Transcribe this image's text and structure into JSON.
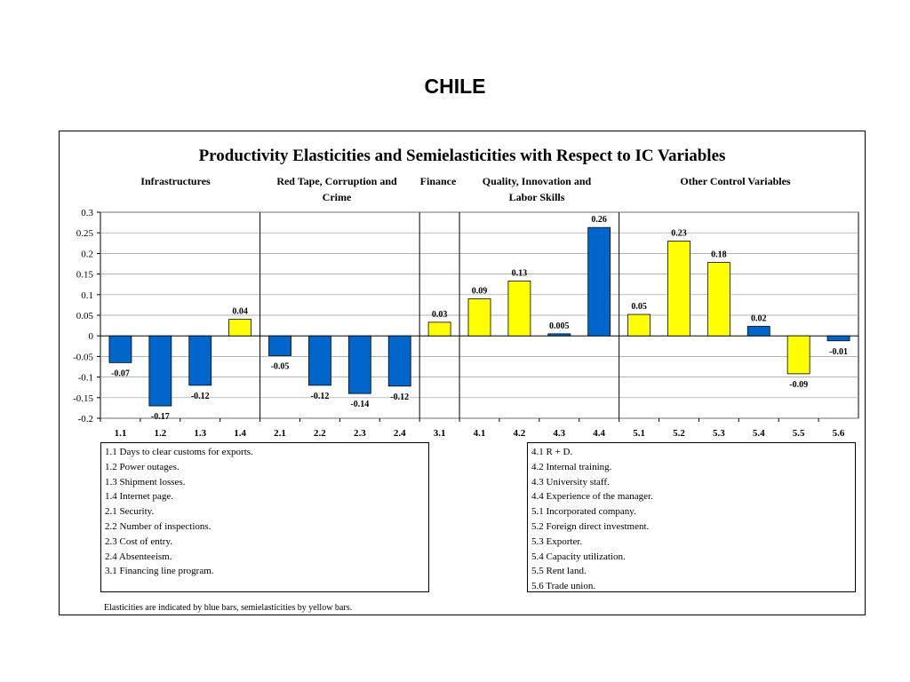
{
  "page": {
    "title": "CHILE"
  },
  "chart_data": {
    "type": "bar",
    "title": "Productivity Elasticities and Semielasticities with Respect to IC Variables",
    "groups": [
      {
        "name": "Infrastructures",
        "categories": [
          "1.1",
          "1.2",
          "1.3",
          "1.4"
        ]
      },
      {
        "name": "Red Tape, Corruption and Crime",
        "categories": [
          "2.1",
          "2.2",
          "2.3",
          "2.4"
        ]
      },
      {
        "name": "Finance",
        "categories": [
          "3.1"
        ]
      },
      {
        "name": "Quality, Innovation and Labor Skills",
        "categories": [
          "4.1",
          "4.2",
          "4.3",
          "4.4"
        ]
      },
      {
        "name": "Other Control Variables",
        "categories": [
          "5.1",
          "5.2",
          "5.3",
          "5.4",
          "5.5",
          "5.6"
        ]
      }
    ],
    "categories": [
      "1.1",
      "1.2",
      "1.3",
      "1.4",
      "2.1",
      "2.2",
      "2.3",
      "2.4",
      "3.1",
      "4.1",
      "4.2",
      "4.3",
      "4.4",
      "5.1",
      "5.2",
      "5.3",
      "5.4",
      "5.5",
      "5.6"
    ],
    "values": [
      -0.065,
      -0.17,
      -0.12,
      0.04,
      -0.048,
      -0.12,
      -0.14,
      -0.122,
      0.033,
      0.09,
      0.133,
      0.005,
      0.263,
      0.052,
      0.23,
      0.178,
      0.023,
      -0.092,
      -0.012
    ],
    "data_labels": [
      "-0.07",
      "-0.17",
      "-0.12",
      "0.04",
      "-0.05",
      "-0.12",
      "-0.14",
      "-0.12",
      "0.03",
      "0.09",
      "0.13",
      "0.005",
      "0.26",
      "0.05",
      "0.23",
      "0.18",
      "0.02",
      "-0.09",
      "-0.01"
    ],
    "bar_types": [
      "elasticity",
      "elasticity",
      "elasticity",
      "semielasticity",
      "elasticity",
      "elasticity",
      "elasticity",
      "elasticity",
      "semielasticity",
      "semielasticity",
      "semielasticity",
      "elasticity",
      "elasticity",
      "semielasticity",
      "semielasticity",
      "semielasticity",
      "elasticity",
      "semielasticity",
      "elasticity"
    ],
    "colors": {
      "elasticity": "#0066cc",
      "semielasticity": "#ffff00"
    },
    "ylim": [
      -0.2,
      0.3
    ],
    "yticks": [
      "0.3",
      "0.25",
      "0.2",
      "0.15",
      "0.1",
      "0.05",
      "0",
      "-0.05",
      "-0.1",
      "-0.15",
      "-0.2"
    ],
    "ytick_values": [
      0.3,
      0.25,
      0.2,
      0.15,
      0.1,
      0.05,
      0,
      -0.05,
      -0.1,
      -0.15,
      -0.2
    ],
    "grid": true,
    "xlabel": "",
    "ylabel": ""
  },
  "legend": {
    "left": [
      "1.1 Days to clear customs for exports.",
      "1.2 Power outages.",
      "1.3 Shipment losses.",
      "1.4 Internet page.",
      "2.1 Security.",
      "2.2 Number of inspections.",
      "2.3 Cost of entry.",
      "2.4 Absenteeism.",
      "3.1 Financing line program."
    ],
    "right": [
      "4.1 R + D.",
      "4.2 Internal training.",
      "4.3 University staff.",
      "4.4 Experience of the manager.",
      "5.1 Incorporated company.",
      "5.2 Foreign direct investment.",
      "5.3 Exporter.",
      "5.4 Capacity utilization.",
      "5.5 Rent land.",
      "5.6 Trade union."
    ]
  },
  "footnote": "Elasticities are indicated by blue bars, semielasticities by yellow bars."
}
